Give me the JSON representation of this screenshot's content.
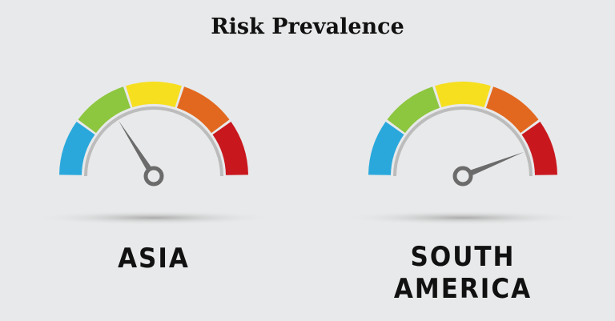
{
  "title": "Risk Prevalence",
  "segment_colors": [
    "#2aa8dc",
    "#8dc63f",
    "#f6df1f",
    "#e2681f",
    "#c9171e"
  ],
  "needle_color": "#6b6b6b",
  "gauges": [
    {
      "label": "ASIA",
      "value_fraction": 0.32
    },
    {
      "label": "SOUTH AMERICA",
      "value_fraction": 0.88
    }
  ]
}
